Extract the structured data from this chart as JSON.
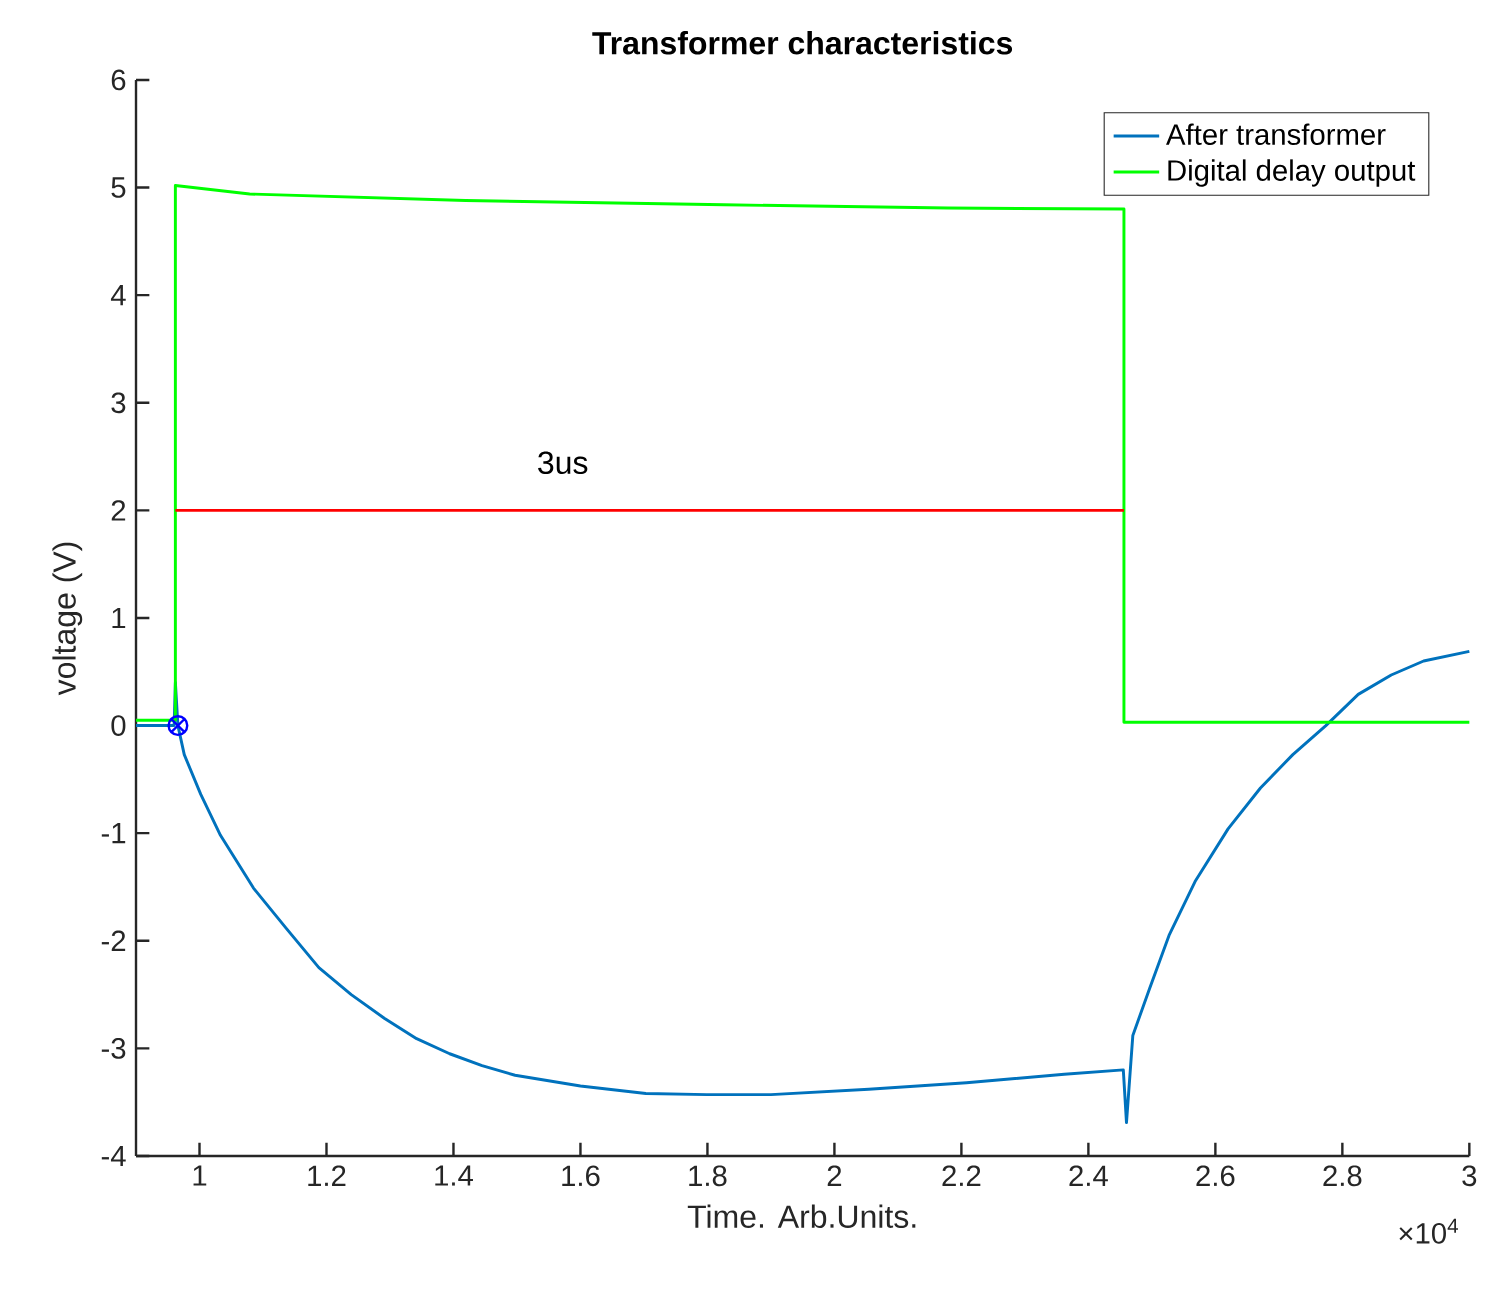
{
  "chart_data": {
    "type": "line",
    "title": "Transformer characteristics",
    "xlabel": "Time. Arb.Units.",
    "ylabel": "voltage (V)",
    "xlim": [
      0.9,
      3
    ],
    "xticks": [
      1,
      1.2,
      1.4,
      1.6,
      1.8,
      2,
      2.2,
      2.4,
      2.6,
      2.8,
      3
    ],
    "ylim": [
      -4,
      6
    ],
    "yticks": [
      -4,
      -3,
      -2,
      -1,
      0,
      1,
      2,
      3,
      4,
      5,
      6
    ],
    "legend": "top right",
    "series": [
      {
        "name": "After transformer",
        "color": "#0072bd",
        "x": [
          0.9,
          0.93,
          0.96,
          0.962,
          0.966,
          0.976,
          1.002,
          1.033,
          1.085,
          1.136,
          1.188,
          1.239,
          1.291,
          1.342,
          1.394,
          1.445,
          1.497,
          1.6,
          1.703,
          1.799,
          1.9,
          2.054,
          2.208,
          2.362,
          2.455,
          2.46,
          2.47,
          2.496,
          2.527,
          2.568,
          2.62,
          2.671,
          2.722,
          2.774,
          2.825,
          2.877,
          2.928,
          3.0
        ],
        "values": [
          0,
          0,
          0,
          0.4,
          0,
          -0.27,
          -0.64,
          -1.02,
          -1.51,
          -1.88,
          -2.25,
          -2.5,
          -2.72,
          -2.91,
          -3.05,
          -3.16,
          -3.25,
          -3.35,
          -3.42,
          -3.43,
          -3.43,
          -3.38,
          -3.32,
          -3.24,
          -3.2,
          -3.69,
          -2.88,
          -2.45,
          -1.95,
          -1.45,
          -0.96,
          -0.58,
          -0.27,
          0,
          0.29,
          0.47,
          0.6,
          0.69
        ]
      },
      {
        "name": "Digital delay output",
        "color": "#00ff00",
        "x": [
          0.9,
          0.962,
          0.962,
          1.079,
          1.419,
          1.826,
          2.179,
          2.456,
          2.456,
          3.0
        ],
        "values": [
          0.05,
          0.05,
          5.02,
          4.94,
          4.88,
          4.84,
          4.81,
          4.8,
          0.03,
          0.03
        ]
      },
      {
        "color": "#ff0000",
        "x": [
          0.962,
          2.456
        ],
        "values": [
          2,
          2
        ]
      },
      {
        "type": "scatter",
        "marker": "cross",
        "color": "#0000ff",
        "x": [
          0.966
        ],
        "values": [
          0
        ]
      }
    ],
    "annotations": [
      "3us",
      "×10$^{4}$"
    ]
  }
}
